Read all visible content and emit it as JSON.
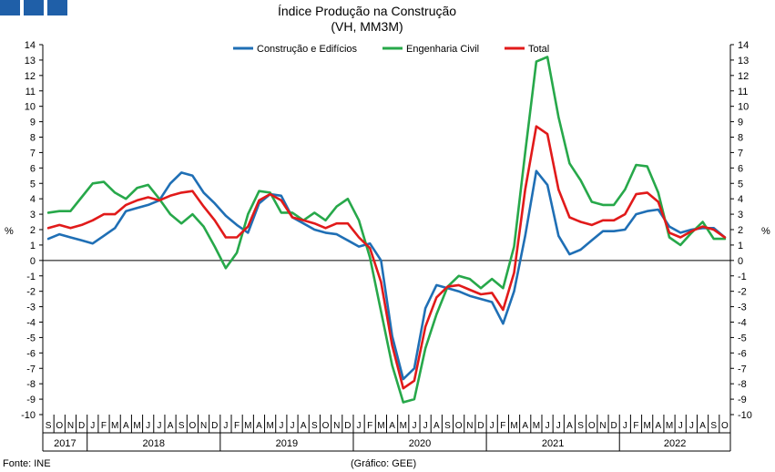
{
  "header": {
    "logo_colors": [
      "#1f5fa8",
      "#1f5fa8",
      "#1f5fa8"
    ]
  },
  "footer": {
    "source": "Fonte: INE",
    "graphic": "(Gráfico: GEE)"
  },
  "chart_data": {
    "type": "line",
    "title": "Índice Produção na Construção",
    "subtitle": "(VH, MM3M)",
    "ylabel_left": "%",
    "ylabel_right": "%",
    "ylim": [
      -10,
      14
    ],
    "yticks": [
      -10,
      -9,
      -8,
      -7,
      -6,
      -5,
      -4,
      -3,
      -2,
      -1,
      0,
      1,
      2,
      3,
      4,
      5,
      6,
      7,
      8,
      9,
      10,
      11,
      12,
      13,
      14
    ],
    "grid": false,
    "legend_position": "top-center",
    "x": [
      "2017-09",
      "2017-10",
      "2017-11",
      "2017-12",
      "2018-01",
      "2018-02",
      "2018-03",
      "2018-04",
      "2018-05",
      "2018-06",
      "2018-07",
      "2018-08",
      "2018-09",
      "2018-10",
      "2018-11",
      "2018-12",
      "2019-01",
      "2019-02",
      "2019-03",
      "2019-04",
      "2019-05",
      "2019-06",
      "2019-07",
      "2019-08",
      "2019-09",
      "2019-10",
      "2019-11",
      "2019-12",
      "2020-01",
      "2020-02",
      "2020-03",
      "2020-04",
      "2020-05",
      "2020-06",
      "2020-07",
      "2020-08",
      "2020-09",
      "2020-10",
      "2020-11",
      "2020-12",
      "2021-01",
      "2021-02",
      "2021-03",
      "2021-04",
      "2021-05",
      "2021-06",
      "2021-07",
      "2021-08",
      "2021-09",
      "2021-10",
      "2021-11",
      "2021-12",
      "2022-01",
      "2022-02",
      "2022-03",
      "2022-04",
      "2022-05",
      "2022-06",
      "2022-07",
      "2022-08",
      "2022-09",
      "2022-10"
    ],
    "month_labels": [
      "S",
      "O",
      "N",
      "D",
      "J",
      "F",
      "M",
      "A",
      "M",
      "J",
      "J",
      "A",
      "S",
      "O",
      "N",
      "D",
      "J",
      "F",
      "M",
      "A",
      "M",
      "J",
      "J",
      "A",
      "S",
      "O",
      "N",
      "D",
      "J",
      "F",
      "M",
      "A",
      "M",
      "J",
      "J",
      "A",
      "S",
      "O",
      "N",
      "D",
      "J",
      "F",
      "M",
      "A",
      "M",
      "J",
      "J",
      "A",
      "S",
      "O",
      "N",
      "D",
      "J",
      "F",
      "M",
      "A",
      "M",
      "J",
      "J",
      "A",
      "S",
      "O"
    ],
    "years": [
      {
        "label": "2017",
        "start": 0,
        "end": 3
      },
      {
        "label": "2018",
        "start": 4,
        "end": 15
      },
      {
        "label": "2019",
        "start": 16,
        "end": 27
      },
      {
        "label": "2020",
        "start": 28,
        "end": 39
      },
      {
        "label": "2021",
        "start": 40,
        "end": 51
      },
      {
        "label": "2022",
        "start": 52,
        "end": 61
      }
    ],
    "series": [
      {
        "name": "Construção e Edifícios",
        "color": "#1f6fb5",
        "values": [
          1.4,
          1.7,
          1.5,
          1.3,
          1.1,
          1.6,
          2.1,
          3.2,
          3.4,
          3.6,
          3.9,
          5.0,
          5.7,
          5.5,
          4.4,
          3.7,
          2.9,
          2.3,
          1.8,
          3.7,
          4.3,
          4.2,
          2.8,
          2.4,
          2.0,
          1.8,
          1.7,
          1.3,
          0.9,
          1.1,
          0.0,
          -4.9,
          -7.7,
          -7.0,
          -3.1,
          -1.6,
          -1.8,
          -2.0,
          -2.3,
          -2.5,
          -2.7,
          -4.1,
          -2.0,
          1.6,
          5.8,
          4.9,
          1.6,
          0.4,
          0.7,
          1.3,
          1.9,
          1.9,
          2.0,
          3.0,
          3.2,
          3.3,
          2.2,
          1.8,
          2.0,
          2.1,
          2.1,
          1.5
        ]
      },
      {
        "name": "Engenharia Civil",
        "color": "#27a84a",
        "values": [
          3.1,
          3.2,
          3.2,
          4.1,
          5.0,
          5.1,
          4.4,
          4.0,
          4.7,
          4.9,
          4.0,
          3.0,
          2.4,
          3.0,
          2.2,
          0.9,
          -0.5,
          0.5,
          3.0,
          4.5,
          4.4,
          3.1,
          3.1,
          2.6,
          3.1,
          2.6,
          3.5,
          4.0,
          2.6,
          0.2,
          -3.3,
          -6.8,
          -9.2,
          -9.0,
          -5.7,
          -3.5,
          -1.7,
          -1.0,
          -1.2,
          -1.8,
          -1.2,
          -1.8,
          0.9,
          7.0,
          12.9,
          13.2,
          9.3,
          6.3,
          5.2,
          3.8,
          3.6,
          3.6,
          4.6,
          6.2,
          6.1,
          4.4,
          1.5,
          1.0,
          1.8,
          2.5,
          1.4,
          1.4
        ]
      },
      {
        "name": "Total",
        "color": "#e11a1a",
        "values": [
          2.1,
          2.3,
          2.1,
          2.3,
          2.6,
          3.0,
          3.0,
          3.6,
          3.9,
          4.1,
          3.9,
          4.2,
          4.4,
          4.5,
          3.5,
          2.6,
          1.5,
          1.5,
          2.2,
          3.9,
          4.3,
          3.9,
          2.8,
          2.6,
          2.4,
          2.1,
          2.4,
          2.4,
          1.5,
          0.8,
          -1.4,
          -5.5,
          -8.3,
          -7.8,
          -4.3,
          -2.4,
          -1.7,
          -1.6,
          -1.9,
          -2.2,
          -2.1,
          -3.2,
          -0.8,
          4.6,
          8.7,
          8.2,
          4.6,
          2.8,
          2.5,
          2.3,
          2.6,
          2.6,
          3.0,
          4.3,
          4.4,
          3.8,
          1.8,
          1.5,
          1.9,
          2.2,
          2.0,
          1.5
        ]
      }
    ]
  }
}
